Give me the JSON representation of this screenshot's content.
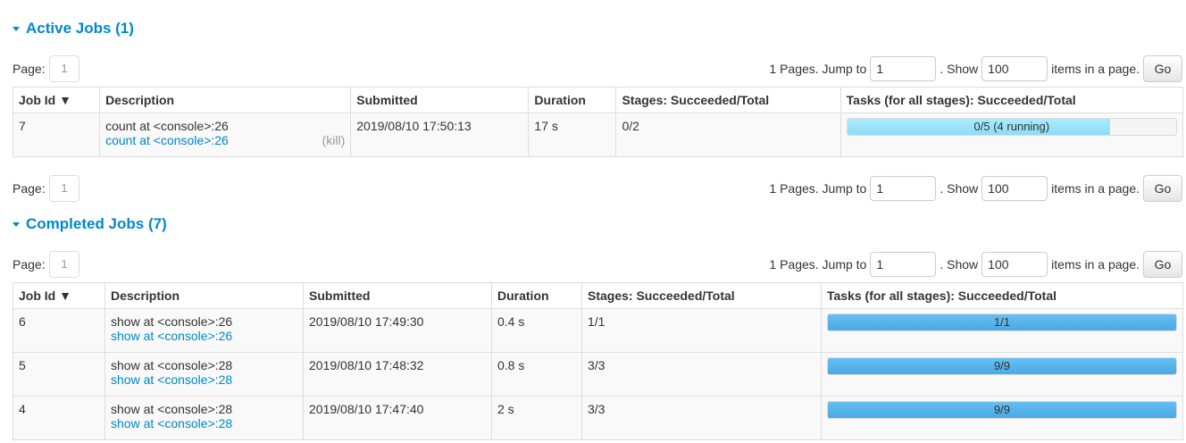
{
  "pager": {
    "page_label": "Page:",
    "page": "1",
    "pages_text": "1 Pages. Jump to",
    "jump_value": "1",
    "show_text": ". Show",
    "show_value": "100",
    "items_text": "items in a page.",
    "go": "Go"
  },
  "active": {
    "title": "Active Jobs (1)",
    "headers": [
      "Job Id ▼",
      "Description",
      "Submitted",
      "Duration",
      "Stages: Succeeded/Total",
      "Tasks (for all stages): Succeeded/Total"
    ],
    "rows": [
      {
        "id": "7",
        "desc": "count at <console>:26",
        "link": "count at <console>:26",
        "kill": "(kill)",
        "submitted": "2019/08/10 17:50:13",
        "duration": "17 s",
        "stages": "0/2",
        "tasks": "0/5 (4 running)",
        "progress": 0.8
      }
    ]
  },
  "completed": {
    "title": "Completed Jobs (7)",
    "headers": [
      "Job Id ▼",
      "Description",
      "Submitted",
      "Duration",
      "Stages: Succeeded/Total",
      "Tasks (for all stages): Succeeded/Total"
    ],
    "rows": [
      {
        "id": "6",
        "desc": "show at <console>:26",
        "link": "show at <console>:26",
        "submitted": "2019/08/10 17:49:30",
        "duration": "0.4 s",
        "stages": "1/1",
        "tasks": "1/1",
        "progress": 1
      },
      {
        "id": "5",
        "desc": "show at <console>:28",
        "link": "show at <console>:28",
        "submitted": "2019/08/10 17:48:32",
        "duration": "0.8 s",
        "stages": "3/3",
        "tasks": "9/9",
        "progress": 1
      },
      {
        "id": "4",
        "desc": "show at <console>:28",
        "link": "show at <console>:28",
        "submitted": "2019/08/10 17:47:40",
        "duration": "2 s",
        "stages": "3/3",
        "tasks": "9/9",
        "progress": 1
      }
    ]
  },
  "colors": {
    "accent": "#0088cc",
    "running": "#a0e6fa",
    "completed": "#5bb4ec"
  }
}
